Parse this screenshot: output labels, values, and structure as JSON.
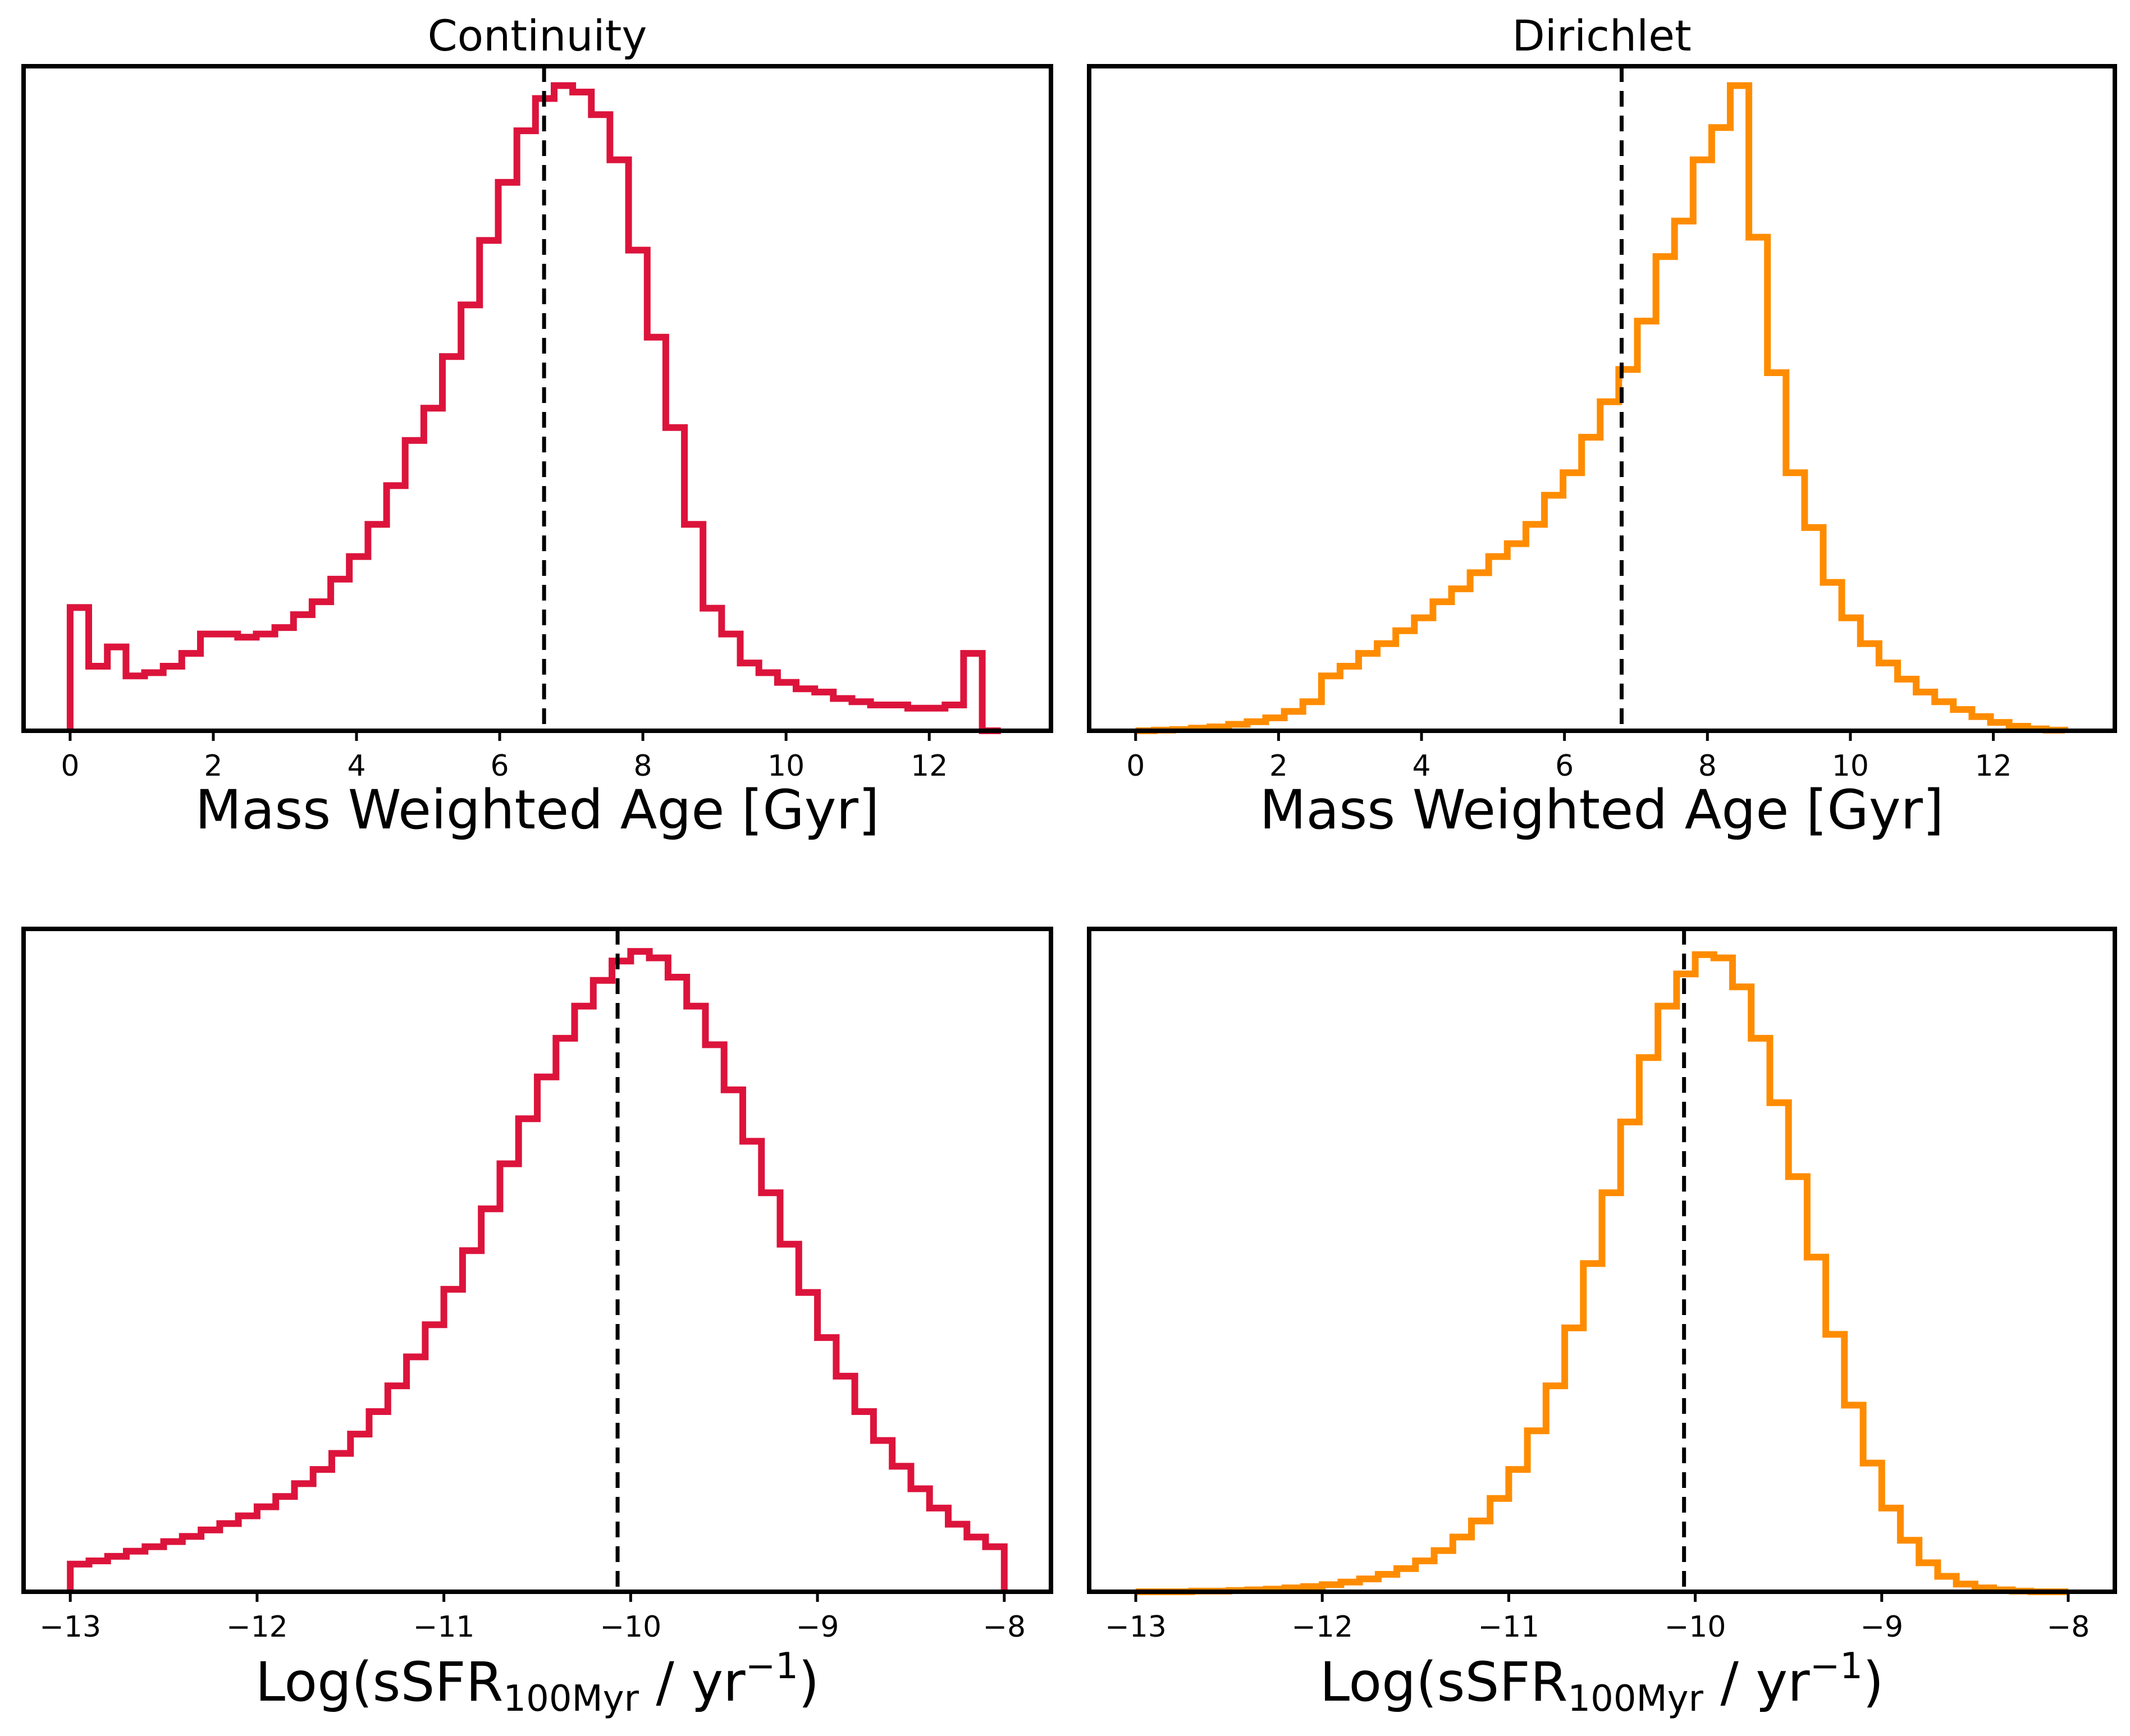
{
  "colors": {
    "continuity": "#dc143c",
    "dirichlet": "#ff8c00"
  },
  "chart_data": [
    {
      "type": "step-histogram",
      "title": "Continuity",
      "xlabel": "Mass Weighted Age [Gyr]",
      "xlim": [
        -0.65,
        13.7
      ],
      "ylim": [
        0,
        1.03
      ],
      "yticks": "none",
      "xticks": [
        0,
        2,
        4,
        6,
        8,
        10,
        12
      ],
      "tick_labels": [
        "0",
        "2",
        "4",
        "6",
        "8",
        "10",
        "12"
      ],
      "color_key": "continuity",
      "median": 6.62,
      "bin_edges": [
        0,
        0.26,
        0.52,
        0.78,
        1.04,
        1.3,
        1.56,
        1.82,
        2.08,
        2.34,
        2.6,
        2.86,
        3.12,
        3.38,
        3.64,
        3.9,
        4.16,
        4.42,
        4.68,
        4.94,
        5.2,
        5.46,
        5.72,
        5.98,
        6.24,
        6.5,
        6.76,
        7.02,
        7.28,
        7.54,
        7.8,
        8.06,
        8.32,
        8.58,
        8.84,
        9.1,
        9.36,
        9.62,
        9.88,
        10.14,
        10.4,
        10.66,
        10.92,
        11.18,
        11.44,
        11.7,
        11.96,
        12.22,
        12.48,
        12.74,
        13.0
      ],
      "counts": [
        0.191,
        0.1,
        0.13,
        0.085,
        0.09,
        0.1,
        0.12,
        0.15,
        0.15,
        0.145,
        0.15,
        0.16,
        0.18,
        0.2,
        0.235,
        0.27,
        0.32,
        0.38,
        0.45,
        0.5,
        0.58,
        0.66,
        0.76,
        0.85,
        0.93,
        0.98,
        1.0,
        0.99,
        0.955,
        0.885,
        0.745,
        0.61,
        0.47,
        0.32,
        0.19,
        0.15,
        0.105,
        0.09,
        0.075,
        0.065,
        0.06,
        0.05,
        0.045,
        0.04,
        0.04,
        0.035,
        0.035,
        0.04,
        0.12,
        0.0
      ]
    },
    {
      "type": "step-histogram",
      "title": "Dirichlet",
      "xlabel": "Mass Weighted Age [Gyr]",
      "xlim": [
        -0.65,
        13.7
      ],
      "ylim": [
        0,
        1.03
      ],
      "yticks": "none",
      "xticks": [
        0,
        2,
        4,
        6,
        8,
        10,
        12
      ],
      "tick_labels": [
        "0",
        "2",
        "4",
        "6",
        "8",
        "10",
        "12"
      ],
      "color_key": "dirichlet",
      "median": 6.8,
      "bin_edges": [
        0,
        0.26,
        0.52,
        0.78,
        1.04,
        1.3,
        1.56,
        1.82,
        2.08,
        2.34,
        2.6,
        2.86,
        3.12,
        3.38,
        3.64,
        3.9,
        4.16,
        4.42,
        4.68,
        4.94,
        5.2,
        5.46,
        5.72,
        5.98,
        6.24,
        6.5,
        6.76,
        7.02,
        7.28,
        7.54,
        7.8,
        8.06,
        8.32,
        8.58,
        8.84,
        9.1,
        9.36,
        9.62,
        9.88,
        10.14,
        10.4,
        10.66,
        10.92,
        11.18,
        11.44,
        11.7,
        11.96,
        12.22,
        12.48,
        12.74
      ],
      "counts": [
        0.0,
        0.001,
        0.002,
        0.004,
        0.006,
        0.01,
        0.014,
        0.02,
        0.03,
        0.045,
        0.085,
        0.1,
        0.12,
        0.135,
        0.155,
        0.175,
        0.2,
        0.22,
        0.245,
        0.27,
        0.29,
        0.32,
        0.365,
        0.4,
        0.455,
        0.51,
        0.56,
        0.635,
        0.735,
        0.79,
        0.885,
        0.935,
        1.0,
        0.765,
        0.555,
        0.4,
        0.315,
        0.23,
        0.175,
        0.135,
        0.105,
        0.08,
        0.06,
        0.045,
        0.033,
        0.022,
        0.013,
        0.007,
        0.003,
        0.001
      ]
    },
    {
      "type": "step-histogram",
      "title": "",
      "xlabel_main": "Log(sSFR",
      "xlabel_sub": "100Myr",
      "xlabel_mid": " / yr",
      "xlabel_sup": "−1",
      "xlabel_end": ")",
      "xlim": [
        -13.25,
        -7.75
      ],
      "ylim": [
        0,
        1.03
      ],
      "yticks": "none",
      "xticks": [
        -13,
        -12,
        -11,
        -10,
        -9,
        -8
      ],
      "tick_labels": [
        "−13",
        "−12",
        "−11",
        "−10",
        "−9",
        "−8"
      ],
      "color_key": "continuity",
      "median": -10.07,
      "bin_edges": [
        -13.0,
        -12.9,
        -12.8,
        -12.7,
        -12.6,
        -12.5,
        -12.4,
        -12.3,
        -12.2,
        -12.1,
        -12.0,
        -11.9,
        -11.8,
        -11.7,
        -11.6,
        -11.5,
        -11.4,
        -11.3,
        -11.2,
        -11.1,
        -11.0,
        -10.9,
        -10.8,
        -10.7,
        -10.6,
        -10.5,
        -10.4,
        -10.3,
        -10.2,
        -10.1,
        -10.0,
        -9.9,
        -9.8,
        -9.7,
        -9.6,
        -9.5,
        -9.4,
        -9.3,
        -9.2,
        -9.1,
        -9.0,
        -8.9,
        -8.8,
        -8.7,
        -8.6,
        -8.5,
        -8.4,
        -8.3,
        -8.2,
        -8.1,
        -8.0
      ],
      "counts": [
        0.043,
        0.048,
        0.055,
        0.063,
        0.07,
        0.078,
        0.086,
        0.096,
        0.106,
        0.118,
        0.132,
        0.148,
        0.168,
        0.19,
        0.215,
        0.245,
        0.28,
        0.32,
        0.365,
        0.415,
        0.47,
        0.53,
        0.595,
        0.665,
        0.735,
        0.8,
        0.86,
        0.91,
        0.95,
        0.98,
        0.995,
        0.985,
        0.955,
        0.91,
        0.85,
        0.78,
        0.7,
        0.62,
        0.54,
        0.465,
        0.395,
        0.335,
        0.28,
        0.235,
        0.195,
        0.16,
        0.13,
        0.105,
        0.085,
        0.07
      ]
    },
    {
      "type": "step-histogram",
      "title": "",
      "xlabel_main": "Log(sSFR",
      "xlabel_sub": "100Myr",
      "xlabel_mid": " / yr",
      "xlabel_sup": "−1",
      "xlabel_end": ")",
      "xlim": [
        -13.25,
        -7.75
      ],
      "ylim": [
        0,
        1.03
      ],
      "yticks": "none",
      "xticks": [
        -13,
        -12,
        -11,
        -10,
        -9,
        -8
      ],
      "tick_labels": [
        "−13",
        "−12",
        "−11",
        "−10",
        "−9",
        "−8"
      ],
      "color_key": "dirichlet",
      "median": -10.06,
      "bin_edges": [
        -13.0,
        -12.9,
        -12.8,
        -12.7,
        -12.6,
        -12.5,
        -12.4,
        -12.3,
        -12.2,
        -12.1,
        -12.0,
        -11.9,
        -11.8,
        -11.7,
        -11.6,
        -11.5,
        -11.4,
        -11.3,
        -11.2,
        -11.1,
        -11.0,
        -10.9,
        -10.8,
        -10.7,
        -10.6,
        -10.5,
        -10.4,
        -10.3,
        -10.2,
        -10.1,
        -10.0,
        -9.9,
        -9.8,
        -9.7,
        -9.6,
        -9.5,
        -9.4,
        -9.3,
        -9.2,
        -9.1,
        -9.0,
        -8.9,
        -8.8,
        -8.7,
        -8.6,
        -8.5,
        -8.4,
        -8.3,
        -8.2,
        -8.1,
        -8.0
      ],
      "counts": [
        0.0,
        0.0,
        0.0,
        0.001,
        0.001,
        0.002,
        0.003,
        0.004,
        0.006,
        0.008,
        0.011,
        0.015,
        0.02,
        0.027,
        0.036,
        0.048,
        0.064,
        0.085,
        0.11,
        0.145,
        0.19,
        0.25,
        0.32,
        0.41,
        0.51,
        0.62,
        0.73,
        0.83,
        0.91,
        0.96,
        0.99,
        0.985,
        0.94,
        0.86,
        0.76,
        0.645,
        0.52,
        0.4,
        0.29,
        0.2,
        0.13,
        0.08,
        0.045,
        0.024,
        0.012,
        0.006,
        0.003,
        0.001,
        0.0,
        0.0
      ]
    }
  ]
}
